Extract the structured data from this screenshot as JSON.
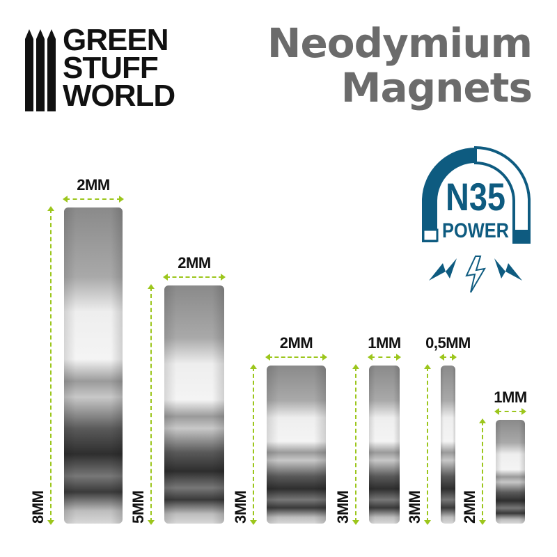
{
  "brand": {
    "lines": [
      "GREEN",
      "STUFF",
      "WORLD"
    ]
  },
  "title": {
    "line1": "Neodymium",
    "line2": "Magnets"
  },
  "badge": {
    "grade": "N35",
    "label": "POWER",
    "icon": "horseshoe-magnet-lightning-icon",
    "color": "#0e5b80"
  },
  "colors": {
    "dimension_arrow": "#9cc61c",
    "title": "#6b6b6b"
  },
  "magnets": [
    {
      "width": "2MM",
      "height": "8MM"
    },
    {
      "width": "2MM",
      "height": "5MM"
    },
    {
      "width": "2MM",
      "height": "3MM"
    },
    {
      "width": "1MM",
      "height": "3MM"
    },
    {
      "width": "0,5MM",
      "height": "3MM"
    },
    {
      "width": "1MM",
      "height": "2MM"
    }
  ]
}
